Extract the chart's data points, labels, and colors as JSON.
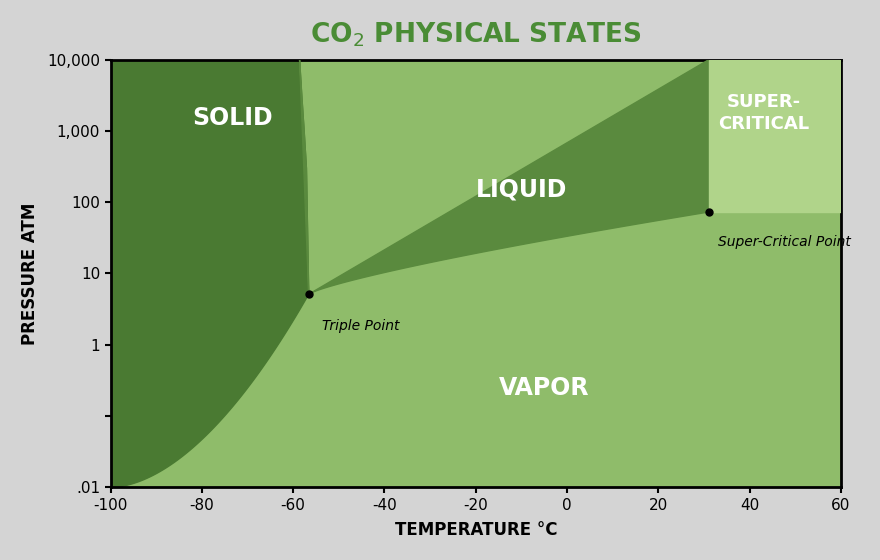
{
  "title_color": "#4a8c35",
  "xlabel": "TEMPERATURE °C",
  "ylabel": "PRESSURE ATM",
  "bg_color": "#d4d4d4",
  "xmin": -100,
  "xmax": 60,
  "ymin_log": -2,
  "ymax_log": 4,
  "yticks": [
    0.01,
    0.1,
    1,
    10,
    100,
    1000,
    10000
  ],
  "ytick_labels": [
    ".01",
    "",
    "1",
    "10",
    "100",
    "1,000",
    "10,000"
  ],
  "xticks": [
    -100,
    -80,
    -60,
    -40,
    -20,
    0,
    20,
    40,
    60
  ],
  "color_solid": "#4a7a32",
  "color_liquid": "#5a8a3e",
  "color_vapor": "#8fbc6a",
  "color_supercritical": "#b0d48a",
  "triple_point_T": -56.6,
  "triple_point_P": 5.11,
  "critical_point_T": 31.1,
  "critical_point_P": 72.8,
  "label_solid": "SOLID",
  "label_liquid": "LIQUID",
  "label_vapor": "VAPOR",
  "label_supercritical": "SUPER-\nCRITICAL",
  "label_triple": "Triple Point",
  "label_critical": "Super-Critical Point"
}
